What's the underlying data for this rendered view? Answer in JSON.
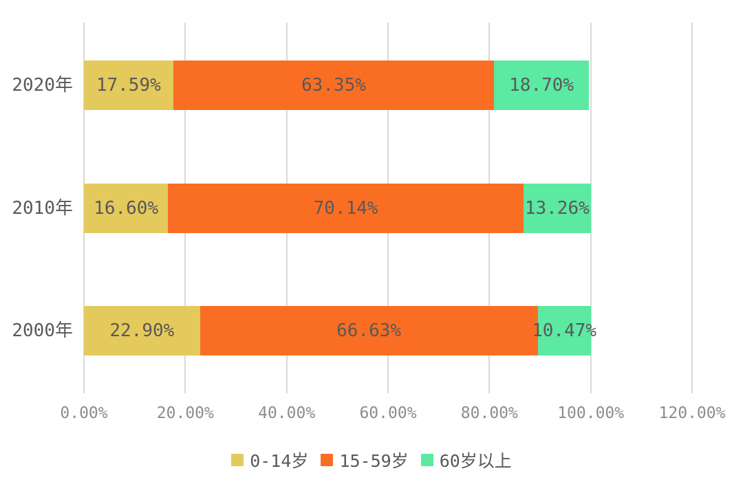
{
  "chart_data": {
    "type": "bar",
    "orientation": "horizontal",
    "stacked": true,
    "title": "",
    "xlabel": "",
    "ylabel": "",
    "categories": [
      "2020年",
      "2010年",
      "2000年"
    ],
    "series": [
      {
        "name": "0-14岁",
        "color": "#e4c95c",
        "values": [
          17.59,
          16.6,
          22.9
        ]
      },
      {
        "name": "15-59岁",
        "color": "#fa6e24",
        "values": [
          63.35,
          70.14,
          66.63
        ]
      },
      {
        "name": "60岁以上",
        "color": "#5ce9a2",
        "values": [
          18.7,
          13.26,
          10.47
        ]
      }
    ],
    "value_labels": [
      [
        "17.59%",
        "16.60%",
        "22.90%"
      ],
      [
        "63.35%",
        "70.14%",
        "66.63%"
      ],
      [
        "18.70%",
        "13.26%",
        "10.47%"
      ]
    ],
    "xlim": [
      0,
      120
    ],
    "x_ticks": [
      0,
      20,
      40,
      60,
      80,
      100,
      120
    ],
    "x_tick_labels": [
      "0.00%",
      "20.00%",
      "40.00%",
      "60.00%",
      "80.00%",
      "100.00%",
      "120.00%"
    ],
    "grid": true,
    "legend_position": "bottom",
    "colors": {
      "background": "#ffffff",
      "gridline": "#d9d9d9",
      "bar_label_text": "#595959",
      "category_text": "#595959",
      "tick_text": "#8c8c8c",
      "legend_text": "#595959"
    }
  }
}
